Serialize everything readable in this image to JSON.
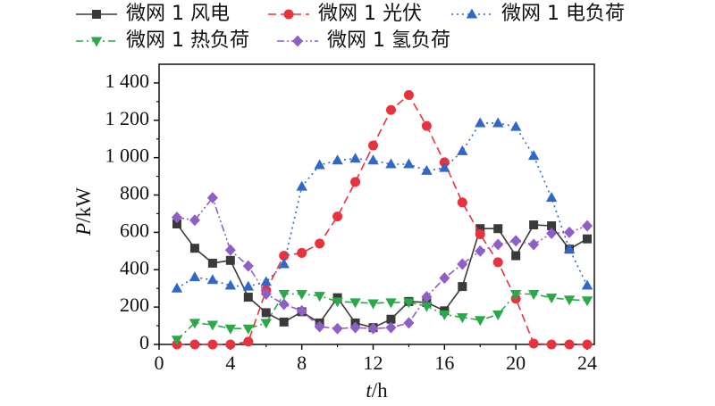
{
  "chart_data": {
    "type": "line",
    "xlabel": "t/h",
    "ylabel": "P/kW",
    "x": [
      1,
      2,
      3,
      4,
      5,
      6,
      7,
      8,
      9,
      10,
      11,
      12,
      13,
      14,
      15,
      16,
      17,
      18,
      19,
      20,
      21,
      22,
      23,
      24
    ],
    "xlim": [
      0,
      24.4
    ],
    "ylim": [
      0,
      1500
    ],
    "xticks": [
      0,
      4,
      8,
      12,
      16,
      20,
      24
    ],
    "xticklabels": [
      "0",
      "4",
      "8",
      "12",
      "16",
      "20",
      "24"
    ],
    "yticks": [
      0,
      200,
      400,
      600,
      800,
      1000,
      1200,
      1400
    ],
    "yticklabels": [
      "0",
      "200",
      "400",
      "600",
      "800",
      "1 000",
      "1 200",
      "1 400"
    ],
    "grid": false,
    "legend": "top",
    "series": [
      {
        "name": "微网 1 风电",
        "color": "#3a3a3a",
        "marker": "square",
        "line": "solid",
        "values": [
          645,
          515,
          435,
          450,
          253,
          170,
          120,
          175,
          115,
          250,
          115,
          90,
          135,
          230,
          225,
          180,
          310,
          620,
          620,
          475,
          640,
          635,
          510,
          565
        ]
      },
      {
        "name": "微网 1 光伏",
        "color": "#e8333d",
        "marker": "circle",
        "line": "dashed",
        "values": [
          0,
          0,
          0,
          0,
          15,
          290,
          475,
          490,
          540,
          685,
          870,
          1065,
          1255,
          1335,
          1170,
          975,
          760,
          590,
          440,
          245,
          5,
          0,
          0,
          0
        ]
      },
      {
        "name": "微网 1 电负荷",
        "color": "#2f68c8",
        "marker": "triangle-up",
        "line": "dotted",
        "values": [
          300,
          360,
          345,
          315,
          310,
          335,
          430,
          845,
          960,
          985,
          995,
          985,
          965,
          965,
          930,
          945,
          1035,
          1185,
          1185,
          1165,
          1010,
          785,
          510,
          315
        ]
      },
      {
        "name": "微网 1 热负荷",
        "color": "#2aa84a",
        "marker": "triangle-down",
        "line": "dash-dot",
        "values": [
          25,
          115,
          105,
          85,
          85,
          115,
          270,
          270,
          260,
          230,
          225,
          220,
          225,
          225,
          205,
          160,
          145,
          130,
          160,
          270,
          270,
          250,
          240,
          235
        ]
      },
      {
        "name": "微网 1 氢负荷",
        "color": "#8f5fc6",
        "marker": "diamond",
        "line": "dash-dot-dot",
        "values": [
          680,
          665,
          785,
          505,
          420,
          270,
          215,
          180,
          95,
          85,
          90,
          85,
          90,
          115,
          255,
          355,
          430,
          500,
          535,
          555,
          535,
          595,
          600,
          635
        ]
      }
    ]
  }
}
